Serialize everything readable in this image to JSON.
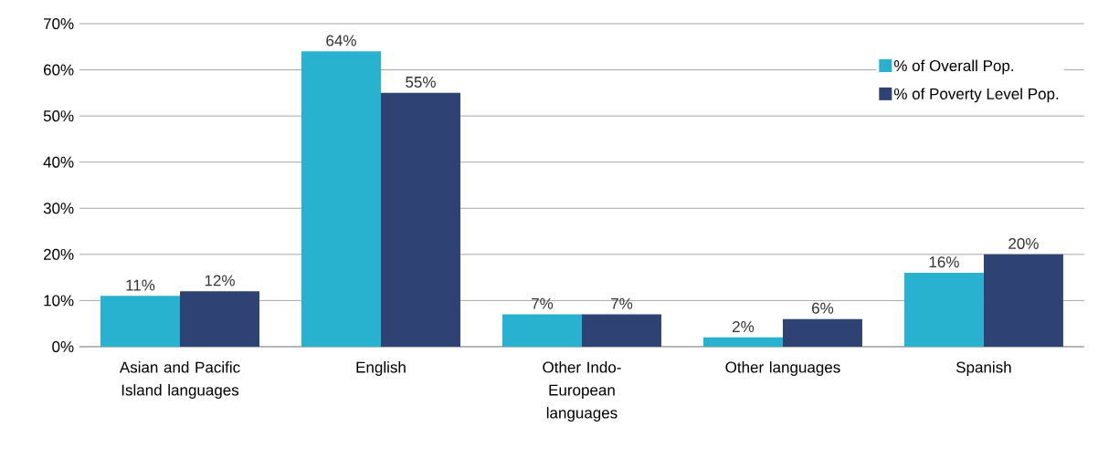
{
  "chart_data": {
    "type": "bar",
    "categories": [
      "Asian and Pacific Island languages",
      "English",
      "Other Indo-European languages",
      "Other languages",
      "Spanish"
    ],
    "series": [
      {
        "name": "% of Overall Pop.",
        "color": "#29b2d0",
        "values": [
          11,
          64,
          7,
          2,
          16
        ],
        "value_labels": [
          "11%",
          "64%",
          "7%",
          "2%",
          "16%"
        ]
      },
      {
        "name": "% of Poverty Level Pop.",
        "color": "#2e4374",
        "values": [
          12,
          55,
          7,
          6,
          20
        ],
        "value_labels": [
          "12%",
          "55%",
          "7%",
          "6%",
          "20%"
        ]
      }
    ],
    "ylim": [
      0,
      70
    ],
    "yticks": [
      {
        "value": 0,
        "label": "0%"
      },
      {
        "value": 10,
        "label": "10%"
      },
      {
        "value": 20,
        "label": "20%"
      },
      {
        "value": 30,
        "label": "30%"
      },
      {
        "value": 40,
        "label": "40%"
      },
      {
        "value": 50,
        "label": "50%"
      },
      {
        "value": 60,
        "label": "60%"
      },
      {
        "value": 70,
        "label": "70%"
      }
    ],
    "grid": "y",
    "legend": "top right"
  }
}
